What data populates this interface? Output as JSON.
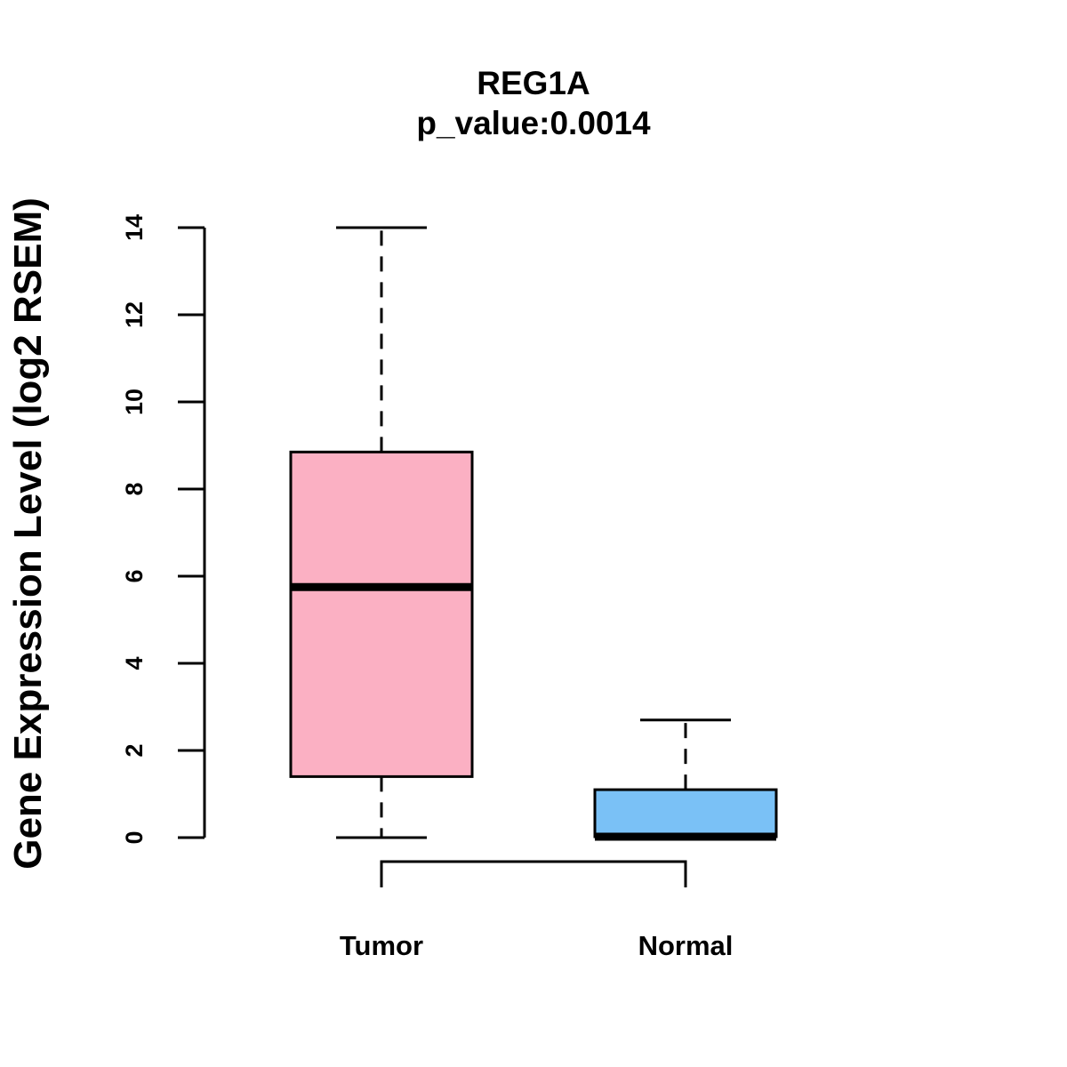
{
  "chart_data": {
    "type": "boxplot",
    "title": "REG1A",
    "subtitle": "p_value:0.0014",
    "xlabel": "",
    "ylabel": "Gene Expression Level (log2 RSEM)",
    "ylim": [
      0,
      14
    ],
    "yticks": [
      0,
      2,
      4,
      6,
      8,
      10,
      12,
      14
    ],
    "grid": false,
    "categories": [
      "Tumor",
      "Normal"
    ],
    "series": [
      {
        "name": "Tumor",
        "min": 0,
        "q1": 1.4,
        "median": 5.75,
        "q3": 8.85,
        "max": 14.0,
        "fill": "#FBB0C3"
      },
      {
        "name": "Normal",
        "min": 0,
        "q1": 0.02,
        "median": 0.02,
        "q3": 1.1,
        "max": 2.7,
        "fill": "#7AC1F6"
      }
    ],
    "comparison_bracket": {
      "between": [
        "Tumor",
        "Normal"
      ]
    }
  }
}
